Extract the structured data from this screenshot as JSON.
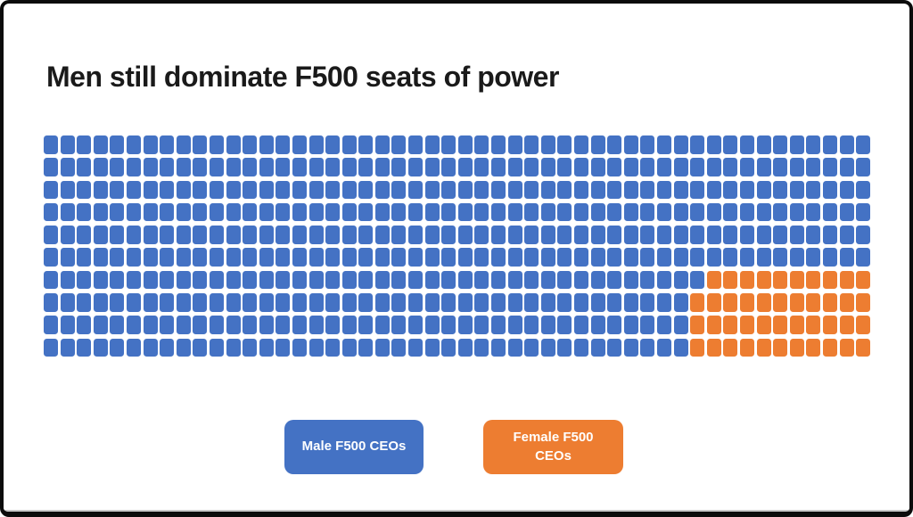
{
  "chart_data": {
    "type": "waffle",
    "title": "Men still dominate F500 seats of power",
    "total_units": 500,
    "unit": "F500 CEO seats",
    "series": [
      {
        "name": "Male F500 CEOs",
        "value": 457,
        "color": "#4472C4"
      },
      {
        "name": "Female F500 CEOs",
        "value": 43,
        "color": "#ED7D31"
      }
    ],
    "grid": {
      "rows": 10,
      "cols": 50,
      "female_cells_per_row": [
        0,
        0,
        0,
        0,
        0,
        0,
        10,
        11,
        11,
        11
      ],
      "female_block_position": "bottom-right"
    },
    "legend_position": "bottom-center",
    "axes": "none",
    "gridlines": "off"
  },
  "card": {
    "background": "#ffffff",
    "border_color": "#0c0c0c",
    "title_color": "#1a1a1a"
  }
}
